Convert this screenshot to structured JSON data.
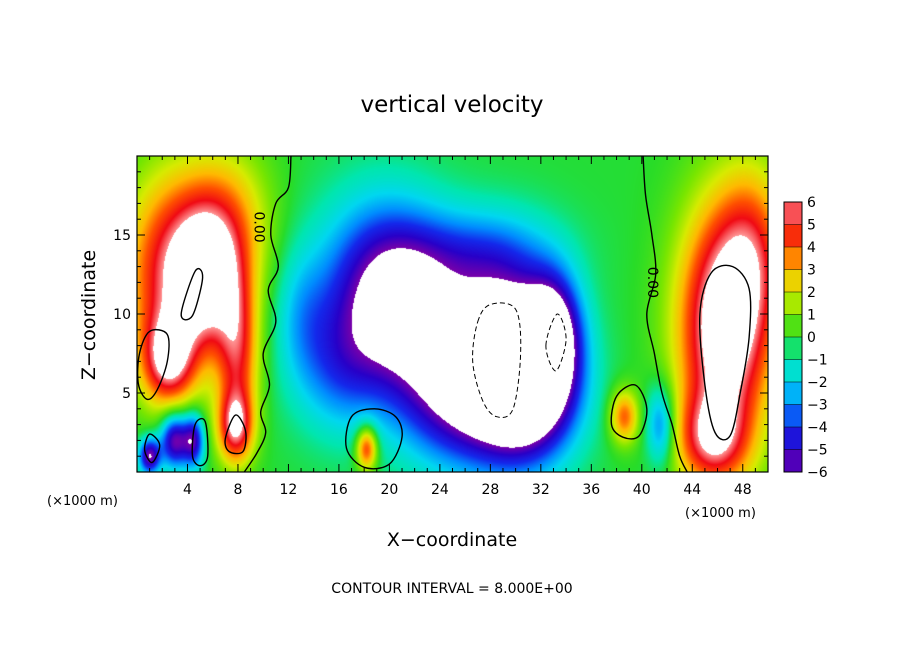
{
  "chart_data": {
    "type": "heatmap",
    "title": "vertical velocity",
    "xlabel": "X−coordinate",
    "ylabel": "Z−coordinate",
    "x_unit_left": "(×1000 m)",
    "x_unit_right": "(×1000 m)",
    "xlim": [
      0,
      50
    ],
    "ylim": [
      0,
      20
    ],
    "x_ticks": [
      4,
      8,
      12,
      16,
      20,
      24,
      28,
      32,
      36,
      40,
      44,
      48
    ],
    "x_tick_labels": [
      "4",
      "8",
      "12",
      "16",
      "20",
      "24",
      "28",
      "32",
      "36",
      "40",
      "44",
      "48"
    ],
    "y_ticks": [
      5,
      10,
      15
    ],
    "y_tick_labels": [
      "5",
      "10",
      "15"
    ],
    "colorbar": {
      "range": [
        -6,
        6
      ],
      "labels": [
        "6",
        "5",
        "4",
        "3",
        "2",
        "1",
        "0",
        "−1",
        "−2",
        "−3",
        "−4",
        "−5",
        "−6"
      ],
      "values": [
        6,
        5,
        4,
        3,
        2,
        1,
        0,
        -1,
        -2,
        -3,
        -4,
        -5,
        -6
      ],
      "over_color": "#ffffff",
      "under_color": "#ffffff"
    },
    "contour_labels": [
      {
        "text": "0.00",
        "x": 9.3,
        "y": 15.5
      },
      {
        "text": "0.00",
        "x": 40.5,
        "y": 12.0
      }
    ],
    "field": {
      "background": -0.1,
      "blobs": [
        {
          "x": 2.5,
          "z": 12.5,
          "sx": 2.6,
          "sz": 4.5,
          "a": 5.0
        },
        {
          "x": 5.5,
          "z": 12.0,
          "sx": 1.8,
          "sz": 3.0,
          "a": 4.5
        },
        {
          "x": 7.0,
          "z": 15.5,
          "sx": 2.5,
          "sz": 3.5,
          "a": 3.5
        },
        {
          "x": 8.0,
          "z": 7.5,
          "sx": 1.2,
          "sz": 3.5,
          "a": 4.5
        },
        {
          "x": 7.8,
          "z": 2.8,
          "sx": 1.0,
          "sz": 1.6,
          "a": 5.0
        },
        {
          "x": 2.5,
          "z": 7.0,
          "sx": 1.5,
          "sz": 2.0,
          "a": 5.0
        },
        {
          "x": 3.0,
          "z": 2.0,
          "sx": 0.8,
          "sz": 1.2,
          "a": -6.0
        },
        {
          "x": 1.0,
          "z": 1.0,
          "sx": 0.6,
          "sz": 0.8,
          "a": -6.0
        },
        {
          "x": 4.5,
          "z": 2.0,
          "sx": 0.6,
          "sz": 1.2,
          "a": -5.0
        },
        {
          "x": 19.5,
          "z": 11.5,
          "sx": 3.5,
          "sz": 4.0,
          "a": -5.5
        },
        {
          "x": 22.5,
          "z": 9.5,
          "sx": 3.0,
          "sz": 3.5,
          "a": -3.5
        },
        {
          "x": 24.5,
          "z": 4.5,
          "sx": 3.0,
          "sz": 3.0,
          "a": -3.5
        },
        {
          "x": 27.5,
          "z": 14.0,
          "sx": 4.0,
          "sz": 2.0,
          "a": -2.0
        },
        {
          "x": 16.0,
          "z": 6.5,
          "sx": 2.5,
          "sz": 3.0,
          "a": -2.5
        },
        {
          "x": 13.0,
          "z": 10.0,
          "sx": 1.5,
          "sz": 3.0,
          "a": -1.5
        },
        {
          "x": 29.0,
          "z": 7.0,
          "sx": 3.0,
          "sz": 4.0,
          "a": -9.0
        },
        {
          "x": 31.5,
          "z": 5.5,
          "sx": 2.5,
          "sz": 3.0,
          "a": -6.0
        },
        {
          "x": 33.0,
          "z": 9.0,
          "sx": 1.5,
          "sz": 2.5,
          "a": -5.0
        },
        {
          "x": 18.2,
          "z": 1.5,
          "sx": 0.6,
          "sz": 1.0,
          "a": 5.0
        },
        {
          "x": 38.6,
          "z": 3.5,
          "sx": 0.8,
          "sz": 1.2,
          "a": 4.0
        },
        {
          "x": 41.5,
          "z": 3.0,
          "sx": 0.8,
          "sz": 1.8,
          "a": -3.5
        },
        {
          "x": 46.5,
          "z": 9.0,
          "sx": 2.6,
          "sz": 5.5,
          "a": 7.5
        },
        {
          "x": 49.0,
          "z": 14.0,
          "sx": 2.0,
          "sz": 4.0,
          "a": 3.0
        },
        {
          "x": 45.5,
          "z": 2.0,
          "sx": 2.0,
          "sz": 2.0,
          "a": 4.0
        }
      ]
    },
    "contours": [
      {
        "style": "solid",
        "pts": [
          [
            12.2,
            20.0
          ],
          [
            12.0,
            18.0
          ],
          [
            11.0,
            17.0
          ],
          [
            10.6,
            15.0
          ],
          [
            11.2,
            13.0
          ],
          [
            10.4,
            11.5
          ],
          [
            11.0,
            9.5
          ],
          [
            10.0,
            7.5
          ],
          [
            10.5,
            5.5
          ],
          [
            9.8,
            3.8
          ],
          [
            10.2,
            2.5
          ],
          [
            9.5,
            1.2
          ],
          [
            8.5,
            0.0
          ]
        ]
      },
      {
        "style": "solid",
        "pts": [
          [
            40.1,
            20.0
          ],
          [
            40.3,
            17.5
          ],
          [
            40.8,
            15.0
          ],
          [
            41.1,
            12.5
          ],
          [
            40.4,
            10.0
          ],
          [
            41.0,
            7.5
          ],
          [
            41.6,
            5.0
          ],
          [
            42.4,
            3.0
          ],
          [
            43.0,
            1.0
          ],
          [
            43.6,
            0.0
          ]
        ]
      },
      {
        "style": "solid",
        "closed": true,
        "pts": [
          [
            44.6,
            10.0
          ],
          [
            45.5,
            12.6
          ],
          [
            47.2,
            13.0
          ],
          [
            48.5,
            11.6
          ],
          [
            48.5,
            8.5
          ],
          [
            47.8,
            5.0
          ],
          [
            47.0,
            2.3
          ],
          [
            45.8,
            2.5
          ],
          [
            45.0,
            5.5
          ]
        ]
      },
      {
        "style": "solid",
        "closed": true,
        "pts": [
          [
            0.2,
            7.5
          ],
          [
            1.0,
            8.9
          ],
          [
            2.4,
            8.7
          ],
          [
            2.4,
            7.0
          ],
          [
            1.6,
            5.2
          ],
          [
            0.8,
            4.6
          ],
          [
            0.1,
            5.6
          ]
        ]
      },
      {
        "style": "solid",
        "closed": true,
        "pts": [
          [
            3.5,
            10.0
          ],
          [
            4.6,
            12.7
          ],
          [
            5.2,
            12.3
          ],
          [
            4.4,
            9.9
          ]
        ]
      },
      {
        "style": "solid",
        "closed": true,
        "pts": [
          [
            7.0,
            2.1
          ],
          [
            7.8,
            3.6
          ],
          [
            8.6,
            2.6
          ],
          [
            8.4,
            1.3
          ],
          [
            7.3,
            1.3
          ]
        ]
      },
      {
        "style": "solid",
        "closed": true,
        "pts": [
          [
            4.4,
            1.0
          ],
          [
            4.6,
            3.0
          ],
          [
            5.4,
            3.2
          ],
          [
            5.6,
            1.0
          ],
          [
            5.0,
            0.4
          ]
        ]
      },
      {
        "style": "solid",
        "closed": true,
        "pts": [
          [
            0.6,
            1.4
          ],
          [
            1.0,
            2.4
          ],
          [
            1.8,
            1.7
          ],
          [
            1.2,
            0.6
          ]
        ]
      },
      {
        "style": "solid",
        "closed": true,
        "pts": [
          [
            16.6,
            1.5
          ],
          [
            17.0,
            3.5
          ],
          [
            18.8,
            4.0
          ],
          [
            20.5,
            3.5
          ],
          [
            21.0,
            2.2
          ],
          [
            20.0,
            0.5
          ],
          [
            18.0,
            0.3
          ]
        ]
      },
      {
        "style": "solid",
        "closed": true,
        "pts": [
          [
            37.6,
            3.0
          ],
          [
            38.0,
            4.8
          ],
          [
            39.5,
            5.5
          ],
          [
            40.4,
            4.0
          ],
          [
            39.8,
            2.3
          ],
          [
            38.5,
            2.2
          ]
        ]
      },
      {
        "style": "dashed",
        "closed": true,
        "pts": [
          [
            27.0,
            9.5
          ],
          [
            28.0,
            10.6
          ],
          [
            30.0,
            10.3
          ],
          [
            30.4,
            7.5
          ],
          [
            29.8,
            4.0
          ],
          [
            28.5,
            3.5
          ],
          [
            27.4,
            4.5
          ],
          [
            26.6,
            7.0
          ]
        ]
      },
      {
        "style": "dashed",
        "closed": true,
        "pts": [
          [
            32.4,
            8.0
          ],
          [
            33.3,
            10.0
          ],
          [
            34.0,
            8.4
          ],
          [
            33.2,
            6.4
          ]
        ]
      }
    ],
    "footer": "CONTOUR INTERVAL = 8.000E+00"
  }
}
